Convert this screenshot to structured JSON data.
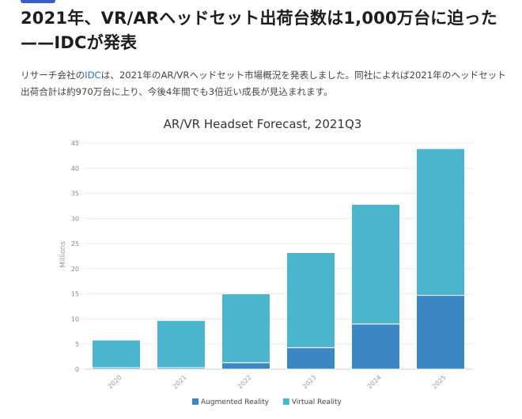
{
  "article": {
    "headline": "2021年、VR/ARヘッドセット出荷台数は1,000万台に迫った——IDCが発表",
    "lead_before": "リサーチ会社の",
    "lead_link": "IDC",
    "lead_after": "は、2021年のAR/VRヘッドセット市場概況を発表しました。同社によれば2021年のヘッドセット出荷合計は約970万台に上り、今後4年間でも3倍近い成長が見込まれます。"
  },
  "chart_data": {
    "type": "bar",
    "stacked": true,
    "title": "AR/VR Headset Forecast, 2021Q3",
    "ylabel": "Millions",
    "ylim": [
      0,
      45
    ],
    "yticks": [
      0,
      5,
      10,
      15,
      20,
      25,
      30,
      35,
      40,
      45
    ],
    "categories": [
      "2020",
      "2021",
      "2022",
      "2023",
      "2024",
      "2025"
    ],
    "series": [
      {
        "name": "Augmented Reality",
        "color": "#3b87c4",
        "values": [
          0.3,
          0.3,
          1.3,
          4.3,
          9.0,
          14.7
        ]
      },
      {
        "name": "Virtual Reality",
        "color": "#4cb5ce",
        "values": [
          5.5,
          9.4,
          13.7,
          18.9,
          23.8,
          29.2
        ]
      }
    ],
    "grid": true,
    "legend": "bottom-center"
  }
}
